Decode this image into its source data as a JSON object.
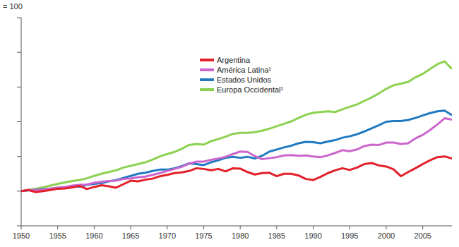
{
  "chart_data": {
    "type": "line",
    "y_label": "= 100",
    "x": [
      1950,
      1951,
      1952,
      1953,
      1954,
      1955,
      1956,
      1957,
      1958,
      1959,
      1960,
      1961,
      1962,
      1963,
      1964,
      1965,
      1966,
      1967,
      1968,
      1969,
      1970,
      1971,
      1972,
      1973,
      1974,
      1975,
      1976,
      1977,
      1978,
      1979,
      1980,
      1981,
      1982,
      1983,
      1984,
      1985,
      1986,
      1987,
      1988,
      1989,
      1990,
      1991,
      1992,
      1993,
      1994,
      1995,
      1996,
      1997,
      1998,
      1999,
      2000,
      2001,
      2002,
      2003,
      2004,
      2005,
      2006,
      2007,
      2008,
      2009
    ],
    "series": [
      {
        "name": "Argentina",
        "color": "#e3202a",
        "values": [
          100,
          103,
          97,
          100,
          103,
          107,
          108,
          111,
          115,
          106,
          112,
          117,
          114,
          110,
          120,
          130,
          128,
          133,
          136,
          143,
          147,
          152,
          154,
          158,
          166,
          164,
          160,
          164,
          157,
          166,
          165,
          155,
          148,
          152,
          153,
          143,
          150,
          150,
          145,
          135,
          132,
          141,
          152,
          160,
          166,
          161,
          168,
          178,
          181,
          174,
          171,
          163,
          143,
          155,
          166,
          178,
          189,
          198,
          200,
          194
        ]
      },
      {
        "name": "América Latina¹",
        "color": "#cc66cc",
        "values": [
          100,
          103,
          103,
          104,
          108,
          110,
          112,
          116,
          118,
          119,
          124,
          127,
          129,
          130,
          135,
          137,
          140,
          142,
          147,
          152,
          158,
          164,
          170,
          179,
          185,
          185,
          190,
          194,
          199,
          207,
          214,
          213,
          201,
          192,
          195,
          198,
          203,
          204,
          202,
          203,
          200,
          198,
          203,
          210,
          218,
          215,
          220,
          230,
          234,
          233,
          240,
          240,
          236,
          238,
          252,
          262,
          276,
          292,
          310,
          306
        ]
      },
      {
        "name": "Estados Unidos",
        "color": "#1f7ac2",
        "values": [
          100,
          102,
          104,
          106,
          106,
          110,
          111,
          113,
          113,
          118,
          121,
          123,
          128,
          132,
          138,
          144,
          150,
          153,
          158,
          162,
          162,
          166,
          172,
          180,
          178,
          175,
          183,
          189,
          196,
          199,
          196,
          199,
          194,
          202,
          214,
          220,
          226,
          231,
          238,
          242,
          241,
          238,
          243,
          247,
          254,
          258,
          264,
          272,
          281,
          290,
          300,
          302,
          302,
          305,
          311,
          318,
          325,
          330,
          332,
          319
        ]
      },
      {
        "name": "Europa Occidental¹",
        "color": "#8cd151",
        "values": [
          100,
          104,
          107,
          111,
          116,
          121,
          125,
          129,
          132,
          137,
          144,
          150,
          155,
          160,
          168,
          173,
          178,
          183,
          191,
          200,
          207,
          213,
          222,
          233,
          236,
          234,
          244,
          250,
          257,
          265,
          268,
          268,
          270,
          274,
          280,
          287,
          294,
          301,
          311,
          320,
          326,
          328,
          330,
          328,
          336,
          343,
          350,
          360,
          370,
          382,
          395,
          405,
          410,
          415,
          428,
          438,
          452,
          466,
          474,
          452
        ]
      }
    ],
    "xlim": [
      1950,
      2009
    ],
    "xticks": [
      1950,
      1955,
      1960,
      1965,
      1970,
      1975,
      1980,
      1985,
      1990,
      1995,
      2000,
      2005
    ],
    "ylim": [
      0,
      600
    ],
    "yticks": [
      0,
      100,
      200,
      300,
      400,
      500,
      600
    ],
    "grid": false,
    "tick_labels": "x",
    "legend": "top"
  }
}
